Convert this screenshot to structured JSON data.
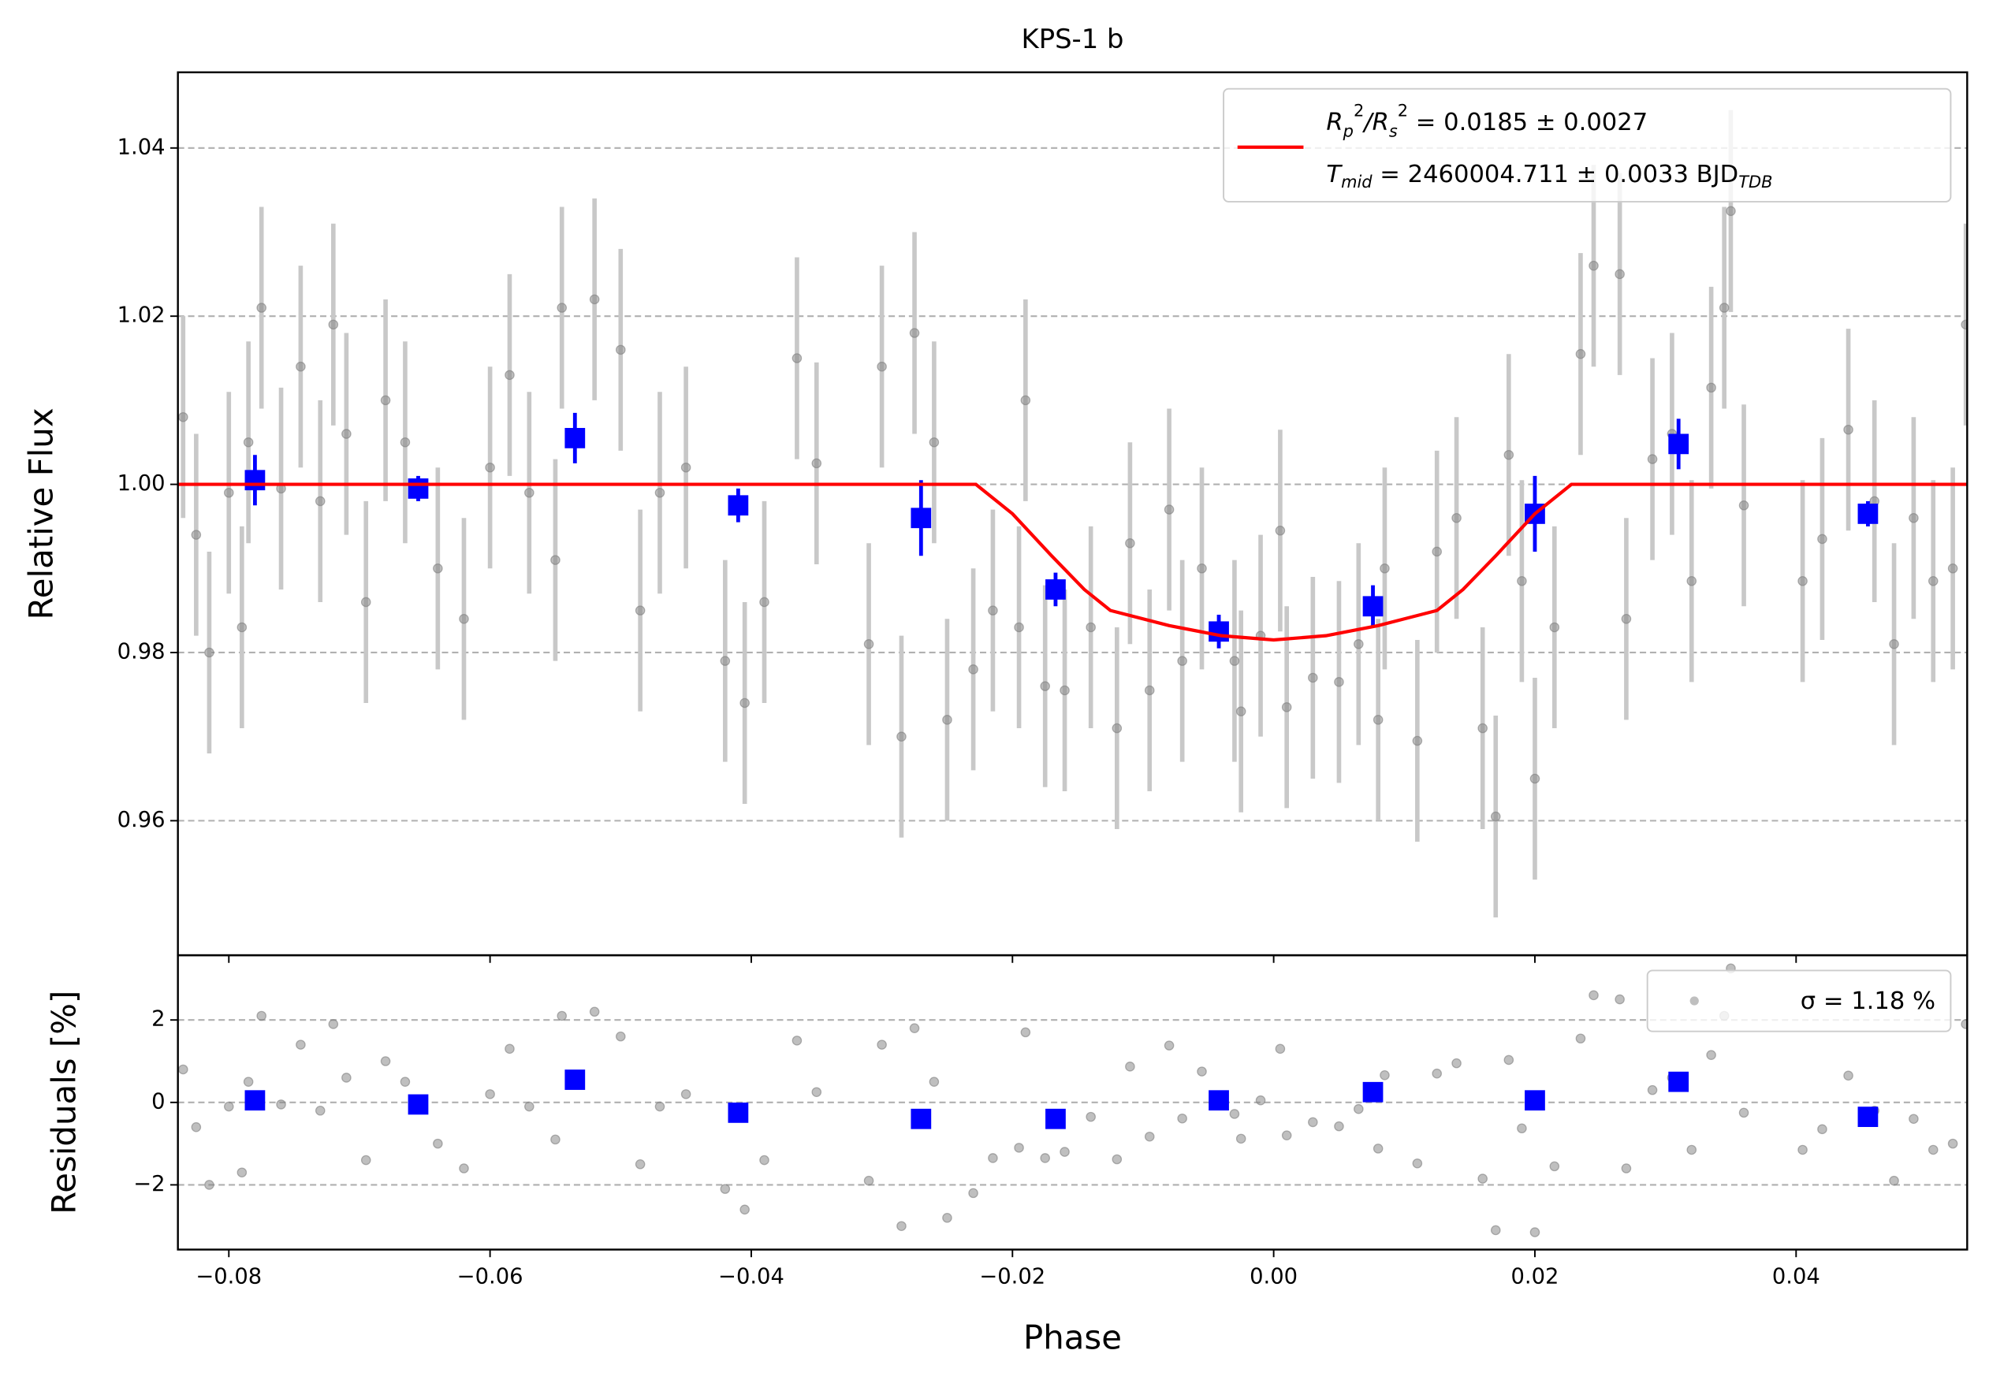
{
  "chart_data": [
    {
      "type": "scatter",
      "title": "KPS-1 b",
      "ylabel": "Relative Flux",
      "xlim": [
        -0.0839,
        0.0531
      ],
      "ylim": [
        0.944,
        1.049
      ],
      "yticks": [
        0.96,
        0.98,
        {
          "value": 1,
          "label": "1.00"
        },
        1.02,
        1.04
      ],
      "grid": true,
      "legend": {
        "corner": "upper right",
        "parts": [
          "R",
          "p",
          "2",
          "/R",
          "s",
          "2",
          " = 0.0185 ± 0.0027",
          "T",
          "mid",
          " = 2460004.711 ± 0.0033 BJD",
          "TDB"
        ]
      },
      "series": [
        {
          "color": "#808080",
          "errcolor": "#c8c8c8",
          "yerr": 0.012,
          "x": [
            -0.0835,
            -0.0825,
            -0.0815,
            -0.08,
            -0.079,
            -0.0785,
            -0.0775,
            -0.076,
            -0.0745,
            -0.073,
            -0.072,
            -0.071,
            -0.0695,
            -0.068,
            -0.0665,
            -0.064,
            -0.062,
            -0.06,
            -0.0585,
            -0.057,
            -0.055,
            -0.0545,
            -0.052,
            -0.05,
            -0.0485,
            -0.047,
            -0.045,
            -0.042,
            -0.0405,
            -0.039,
            -0.0365,
            -0.035,
            -0.031,
            -0.03,
            -0.0285,
            -0.0275,
            -0.026,
            -0.025,
            -0.023,
            -0.0215,
            -0.0195,
            -0.019,
            -0.0175,
            -0.016,
            -0.014,
            -0.012,
            -0.011,
            -0.0095,
            -0.008,
            -0.007,
            -0.0055,
            -0.003,
            -0.0025,
            -0.001,
            0.0005,
            0.001,
            0.003,
            0.005,
            0.0065,
            0.008,
            0.0085,
            0.011,
            0.0125,
            0.014,
            0.016,
            0.017,
            0.018,
            0.019,
            0.02,
            0.0215,
            0.0235,
            0.0245,
            0.0265,
            0.027,
            0.029,
            0.0305,
            0.032,
            0.0335,
            0.0345,
            0.035,
            0.036,
            0.0405,
            0.042,
            0.044,
            0.046,
            0.0475,
            0.049,
            0.0505,
            0.052,
            0.053
          ],
          "values": [
            1.008,
            0.994,
            0.98,
            0.999,
            0.983,
            1.005,
            1.021,
            0.9995,
            1.014,
            0.998,
            1.019,
            1.006,
            0.986,
            1.01,
            1.005,
            0.99,
            0.984,
            1.002,
            1.013,
            0.999,
            0.991,
            1.021,
            1.022,
            1.016,
            0.985,
            0.999,
            1.002,
            0.979,
            0.974,
            0.986,
            1.015,
            1.0025,
            0.981,
            1.014,
            0.97,
            1.018,
            1.005,
            0.972,
            0.978,
            0.985,
            0.983,
            1.01,
            0.976,
            0.9755,
            0.983,
            0.971,
            0.993,
            0.9755,
            0.997,
            0.979,
            0.99,
            0.979,
            0.973,
            0.982,
            0.9945,
            0.9735,
            0.977,
            0.9765,
            0.981,
            0.972,
            0.99,
            0.9695,
            0.992,
            0.996,
            0.971,
            0.9605,
            1.0035,
            0.9885,
            0.965,
            0.983,
            1.0155,
            1.026,
            1.025,
            0.984,
            1.003,
            1.006,
            0.9885,
            1.0115,
            1.021,
            1.0325,
            0.9975,
            0.9885,
            0.9935,
            1.0065,
            0.998,
            0.981,
            0.996,
            0.9885,
            0.99,
            1.019
          ]
        },
        {
          "color": "#0000ff",
          "x": [
            -0.078,
            -0.0655,
            -0.0535,
            -0.041,
            -0.027,
            -0.0167,
            -0.0042,
            0.0076,
            0.02,
            0.031,
            0.0455
          ],
          "values": [
            1.0005,
            0.9995,
            1.0055,
            0.9975,
            0.996,
            0.9875,
            0.9825,
            0.9855,
            0.9965,
            1.0048,
            0.9965
          ],
          "errors": [
            0.003,
            0.0015,
            0.003,
            0.002,
            0.0045,
            0.002,
            0.002,
            0.0025,
            0.0045,
            0.003,
            0.0015
          ]
        },
        {
          "color": "#ff0000",
          "x": [
            -0.0839,
            -0.0228,
            -0.02,
            -0.017,
            -0.0145,
            -0.0125,
            -0.008,
            -0.004,
            0,
            0.004,
            0.008,
            0.0125,
            0.0145,
            0.017,
            0.02,
            0.0228,
            0.0531
          ],
          "values": [
            1,
            1,
            0.9965,
            0.9915,
            0.9875,
            0.985,
            0.9832,
            0.982,
            0.9815,
            0.982,
            0.9832,
            0.985,
            0.9875,
            0.9915,
            0.9965,
            1,
            1
          ]
        }
      ]
    },
    {
      "type": "scatter",
      "ylabel": "Residuals [%]",
      "xlabel": "Phase",
      "xlim": [
        -0.0839,
        0.0531
      ],
      "ylim": [
        -3.57,
        3.57
      ],
      "xticks": [
        {
          "value": -0.08,
          "label": "−0.08"
        },
        {
          "value": -0.06,
          "label": "−0.06"
        },
        {
          "value": -0.04,
          "label": "−0.04"
        },
        {
          "value": -0.02,
          "label": "−0.02"
        },
        {
          "value": 0,
          "label": "0.00"
        },
        0.02,
        0.04
      ],
      "yticks": [
        {
          "value": -2,
          "label": "−2"
        },
        0,
        2
      ],
      "grid": true,
      "legend": {
        "corner": "upper right",
        "label": "σ = 1.18 %"
      },
      "series": [
        {
          "color": "#808080",
          "values": [
            0.8,
            -0.6,
            -2.0,
            -0.1,
            -1.7,
            0.5,
            2.1,
            -0.05,
            1.4,
            -0.2,
            1.9,
            0.6,
            -1.4,
            1.0,
            0.5,
            -1.0,
            -1.6,
            0.2,
            1.3,
            -0.1,
            -0.9,
            2.1,
            2.2,
            1.6,
            -1.5,
            -0.1,
            0.2,
            -2.1,
            -2.6,
            -1.4,
            1.5,
            0.25,
            -1.9,
            1.4,
            -3.0,
            1.8,
            0.5,
            -2.8,
            -2.2,
            -1.35,
            -1.1,
            1.7,
            -1.35,
            -1.2,
            -0.35,
            -1.38,
            0.87,
            -0.83,
            1.38,
            -0.39,
            0.75,
            -0.28,
            -0.88,
            0.05,
            1.3,
            -0.8,
            -0.48,
            -0.58,
            -0.16,
            -1.12,
            0.66,
            -1.48,
            0.7,
            0.95,
            -1.85,
            -3.1,
            1.03,
            -0.63,
            -3.15,
            -1.55,
            1.55,
            2.6,
            2.5,
            -1.6,
            0.3,
            0.6,
            -1.15,
            1.15,
            2.1,
            3.25,
            -0.25,
            -1.15,
            -0.65,
            0.65,
            -0.2,
            -1.9,
            -0.4,
            -1.15,
            -1.0,
            1.9
          ]
        },
        {
          "color": "#0000ff",
          "values": [
            0.05,
            -0.05,
            0.55,
            -0.25,
            -0.4,
            -0.4,
            0.05,
            0.25,
            0.05,
            0.5,
            -0.35
          ]
        }
      ]
    }
  ]
}
